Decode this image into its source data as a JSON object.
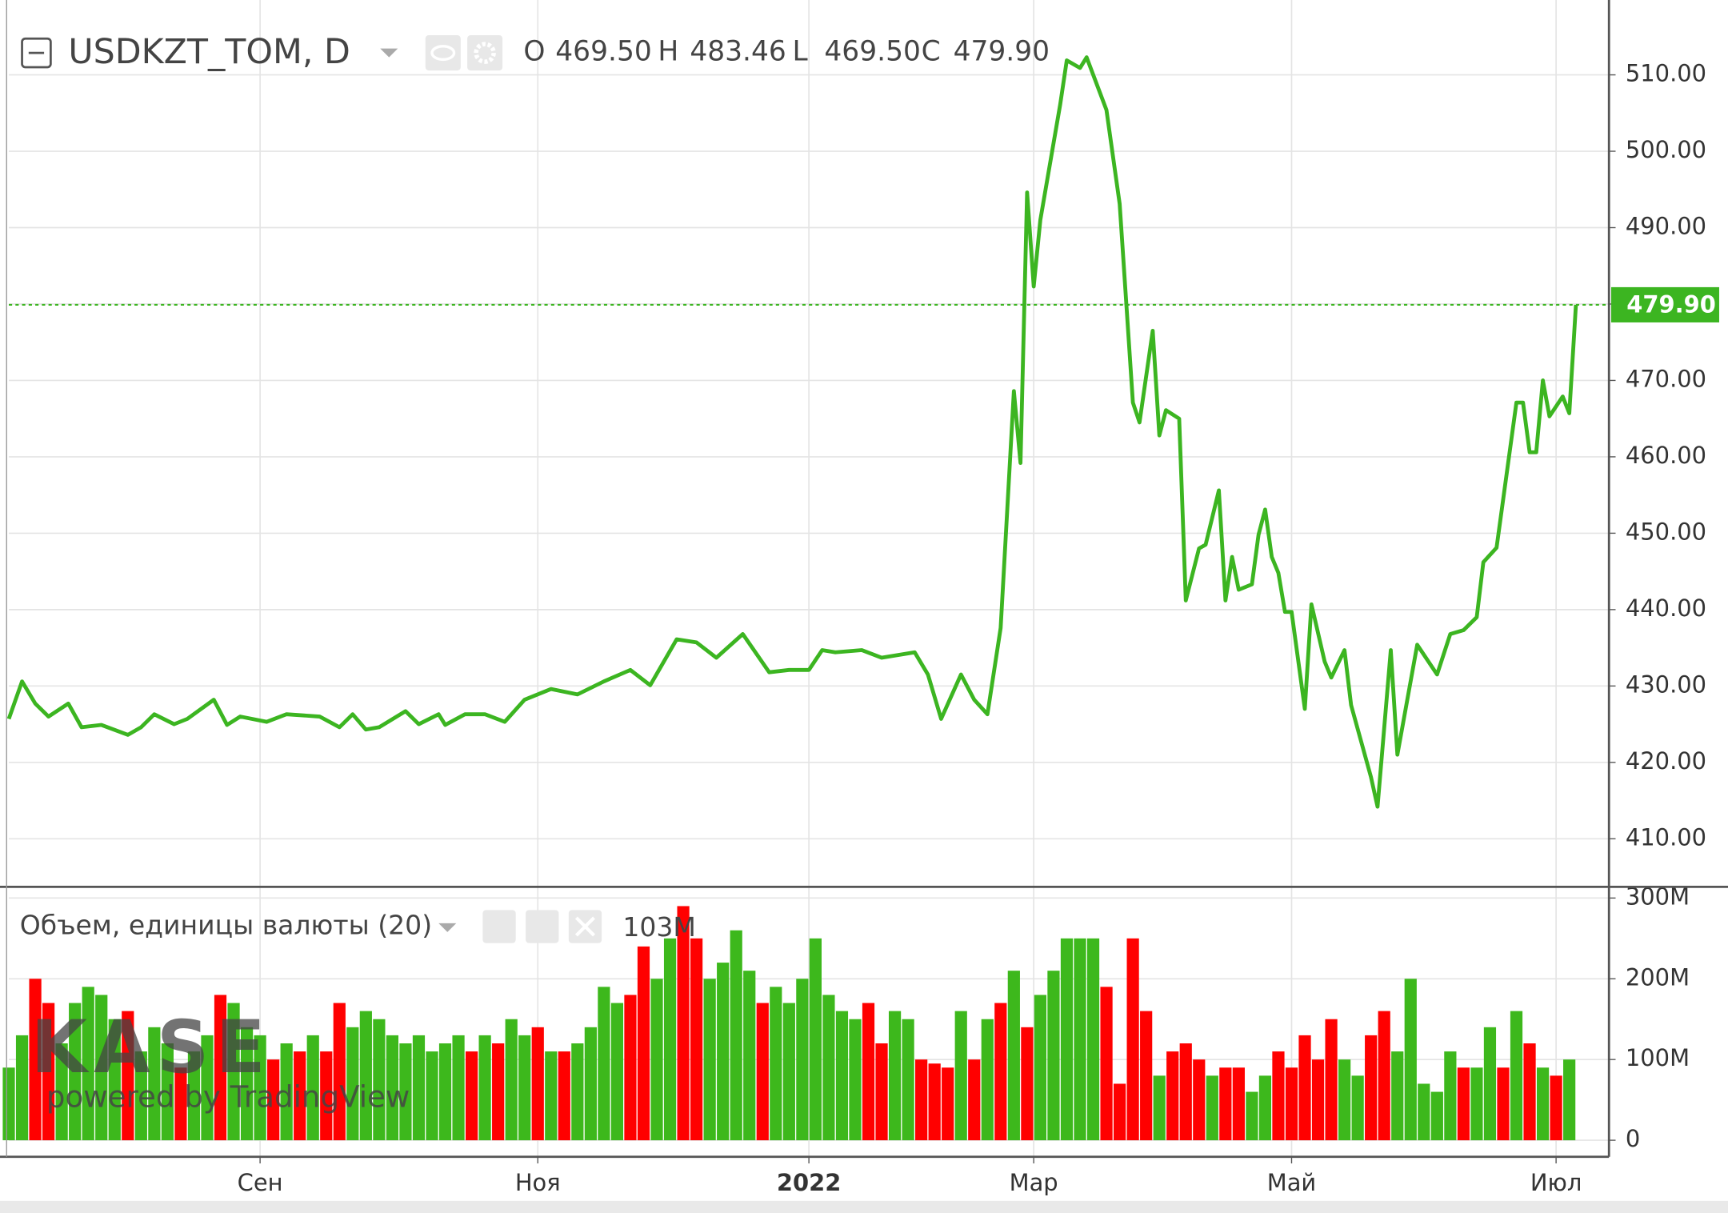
{
  "chart_data": [
    {
      "type": "line",
      "title": "USDKZT_TOM, D",
      "ohlc": [
        {
          "name": "O",
          "value": 469.5,
          "label": "469.50"
        },
        {
          "name": "H",
          "value": 483.46,
          "label": "483.46"
        },
        {
          "name": "L",
          "value": 469.5,
          "label": "469.50"
        },
        {
          "name": "C",
          "value": 479.9,
          "label": "479.90"
        }
      ],
      "color": "#3cb521",
      "x": [
        0,
        2,
        4,
        6,
        9,
        11,
        14,
        18,
        20,
        22,
        25,
        27,
        31,
        33,
        35,
        39,
        42,
        47,
        50,
        52,
        54,
        56,
        60,
        62,
        65,
        66,
        69,
        72,
        75,
        78,
        82,
        86,
        90,
        94,
        97,
        101,
        104,
        107,
        111,
        115,
        118,
        121,
        123,
        125,
        129,
        132,
        137,
        139,
        141,
        144,
        146,
        148,
        150,
        152,
        153,
        154,
        155,
        156,
        159,
        160,
        162,
        163,
        166,
        168,
        170,
        171,
        173,
        174,
        175,
        177,
        178,
        180,
        181,
        183,
        184,
        185,
        186,
        188,
        189,
        190,
        191,
        192,
        193,
        194,
        196,
        197,
        199,
        200,
        202,
        203,
        206,
        207,
        209,
        210,
        213,
        216,
        218,
        220,
        222,
        223,
        225,
        228,
        229,
        230,
        231,
        232,
        233,
        235,
        236,
        237
      ],
      "values": [
        425.7,
        430.6,
        427.7,
        426.0,
        427.7,
        424.6,
        424.9,
        423.6,
        424.6,
        426.3,
        425.0,
        425.7,
        428.2,
        424.9,
        426.0,
        425.3,
        426.3,
        426.0,
        424.6,
        426.3,
        424.3,
        424.6,
        426.7,
        425.0,
        426.3,
        424.9,
        426.3,
        426.3,
        425.3,
        428.2,
        429.6,
        428.9,
        430.6,
        432.1,
        430.1,
        436.1,
        435.7,
        433.7,
        436.8,
        431.8,
        432.1,
        432.1,
        434.7,
        434.4,
        434.7,
        433.7,
        434.4,
        431.5,
        425.7,
        431.5,
        428.2,
        426.3,
        437.6,
        468.6,
        459.2,
        494.6,
        482.3,
        491.0,
        506.1,
        511.9,
        510.9,
        512.3,
        505.4,
        493.1,
        467.1,
        464.5,
        476.5,
        462.8,
        466.1,
        465.0,
        441.2,
        448.0,
        448.5,
        455.6,
        441.2,
        446.9,
        442.6,
        443.3,
        449.8,
        453.1,
        446.9,
        444.8,
        439.7,
        439.7,
        427.0,
        440.7,
        433.2,
        431.1,
        434.7,
        427.5,
        418.1,
        414.2,
        434.7,
        421.0,
        435.4,
        431.5,
        436.8,
        437.3,
        439.0,
        446.2,
        448.1,
        467.1,
        467.1,
        460.6,
        460.6,
        470.0,
        465.3,
        467.9,
        465.7,
        479.9
      ],
      "last_price": {
        "value": 479.9,
        "label": "479.90"
      },
      "xlim": [
        0,
        242
      ],
      "xticks": [
        {
          "value": 38,
          "label": "Сен"
        },
        {
          "value": 80,
          "label": "Ноя"
        },
        {
          "value": 121,
          "label": "2022"
        },
        {
          "value": 155,
          "label": "Мар"
        },
        {
          "value": 194,
          "label": "Май"
        },
        {
          "value": 234,
          "label": "Июл"
        }
      ],
      "ylim": [
        403.7,
        519.8
      ],
      "yticks": [
        {
          "value": 410,
          "label": "410.00"
        },
        {
          "value": 420,
          "label": "420.00"
        },
        {
          "value": 430,
          "label": "430.00"
        },
        {
          "value": 440,
          "label": "440.00"
        },
        {
          "value": 450,
          "label": "450.00"
        },
        {
          "value": 460,
          "label": "460.00"
        },
        {
          "value": 470,
          "label": "470.00"
        },
        {
          "value": 480,
          "label": "480.00"
        },
        {
          "value": 490,
          "label": "490.00"
        },
        {
          "value": 500,
          "label": "500.00"
        },
        {
          "value": 510,
          "label": "510.00"
        }
      ],
      "grid": true
    },
    {
      "type": "bar",
      "title": "Объем, единицы валюты (20)",
      "last_volume": {
        "value": 103,
        "label": "103M"
      },
      "watermark": {
        "logo": "KASE",
        "text": "powered by TradingView"
      },
      "x": [
        0,
        2,
        4,
        6,
        8,
        10,
        12,
        14,
        16,
        18,
        20,
        22,
        24,
        26,
        28,
        30,
        32,
        34,
        36,
        38,
        40,
        42,
        44,
        46,
        48,
        50,
        52,
        54,
        56,
        58,
        60,
        62,
        64,
        66,
        68,
        70,
        72,
        74,
        76,
        78,
        80,
        82,
        84,
        86,
        88,
        90,
        92,
        94,
        96,
        98,
        100,
        102,
        104,
        106,
        108,
        110,
        112,
        114,
        116,
        118,
        120,
        122,
        124,
        126,
        128,
        130,
        132,
        134,
        136,
        138,
        140,
        142,
        144,
        146,
        148,
        150,
        152,
        154,
        156,
        158,
        160,
        162,
        164,
        166,
        168,
        170,
        172,
        174,
        176,
        178,
        180,
        182,
        184,
        186,
        188,
        190,
        192,
        194,
        196,
        198,
        200,
        202,
        204,
        206,
        208,
        210,
        212,
        214,
        216,
        218,
        220,
        222,
        224,
        226,
        228,
        230,
        232,
        234,
        236
      ],
      "values": [
        90,
        130,
        200,
        170,
        120,
        170,
        190,
        180,
        150,
        160,
        110,
        140,
        120,
        90,
        110,
        130,
        180,
        170,
        140,
        130,
        100,
        120,
        110,
        130,
        110,
        170,
        140,
        160,
        150,
        130,
        120,
        130,
        110,
        120,
        130,
        110,
        130,
        120,
        150,
        130,
        140,
        110,
        110,
        120,
        140,
        190,
        170,
        180,
        240,
        200,
        250,
        290,
        250,
        200,
        220,
        260,
        210,
        170,
        190,
        170,
        200,
        250,
        180,
        160,
        150,
        170,
        120,
        160,
        150,
        100,
        95,
        90,
        160,
        100,
        150,
        170,
        210,
        140,
        180,
        210,
        250,
        250,
        250,
        190,
        70,
        250,
        160,
        80,
        110,
        120,
        100,
        80,
        90,
        90,
        60,
        80,
        110,
        90,
        130,
        100,
        150,
        100,
        80,
        130,
        160,
        110,
        200,
        70,
        60,
        110,
        90,
        90,
        140,
        90,
        160,
        120,
        90,
        80,
        100
      ],
      "colors": [
        "#3db81c",
        "#3db81c",
        "#ff0000",
        "#ff0000",
        "#3db81c",
        "#3db81c",
        "#3db81c",
        "#3db81c",
        "#3db81c",
        "#ff0000",
        "#3db81c",
        "#3db81c",
        "#3db81c",
        "#ff0000",
        "#3db81c",
        "#3db81c",
        "#ff0000",
        "#3db81c",
        "#3db81c",
        "#3db81c",
        "#ff0000",
        "#3db81c",
        "#ff0000",
        "#3db81c",
        "#ff0000",
        "#ff0000",
        "#3db81c",
        "#3db81c",
        "#3db81c",
        "#3db81c",
        "#3db81c",
        "#3db81c",
        "#3db81c",
        "#3db81c",
        "#3db81c",
        "#ff0000",
        "#3db81c",
        "#ff0000",
        "#3db81c",
        "#3db81c",
        "#ff0000",
        "#3db81c",
        "#ff0000",
        "#3db81c",
        "#3db81c",
        "#3db81c",
        "#3db81c",
        "#ff0000",
        "#ff0000",
        "#3db81c",
        "#3db81c",
        "#ff0000",
        "#ff0000",
        "#3db81c",
        "#3db81c",
        "#3db81c",
        "#3db81c",
        "#ff0000",
        "#3db81c",
        "#3db81c",
        "#3db81c",
        "#3db81c",
        "#3db81c",
        "#3db81c",
        "#3db81c",
        "#ff0000",
        "#ff0000",
        "#3db81c",
        "#3db81c",
        "#ff0000",
        "#ff0000",
        "#ff0000",
        "#3db81c",
        "#ff0000",
        "#3db81c",
        "#ff0000",
        "#3db81c",
        "#ff0000",
        "#3db81c",
        "#3db81c",
        "#3db81c",
        "#3db81c",
        "#3db81c",
        "#ff0000",
        "#ff0000",
        "#ff0000",
        "#ff0000",
        "#3db81c",
        "#ff0000",
        "#ff0000",
        "#ff0000",
        "#3db81c",
        "#ff0000",
        "#ff0000",
        "#3db81c",
        "#3db81c",
        "#ff0000",
        "#ff0000",
        "#ff0000",
        "#ff0000",
        "#ff0000",
        "#3db81c",
        "#3db81c",
        "#ff0000",
        "#ff0000",
        "#3db81c",
        "#3db81c",
        "#3db81c",
        "#3db81c",
        "#3db81c",
        "#ff0000",
        "#3db81c",
        "#3db81c",
        "#ff0000",
        "#3db81c",
        "#ff0000",
        "#3db81c",
        "#ff0000",
        "#3db81c"
      ],
      "ylim": [
        -20.5,
        313.8
      ],
      "yticks": [
        0,
        {
          "value": 100,
          "label": "100M"
        },
        {
          "value": 200,
          "label": "200M"
        },
        {
          "value": 300,
          "label": "300M"
        }
      ],
      "grid": true
    }
  ]
}
